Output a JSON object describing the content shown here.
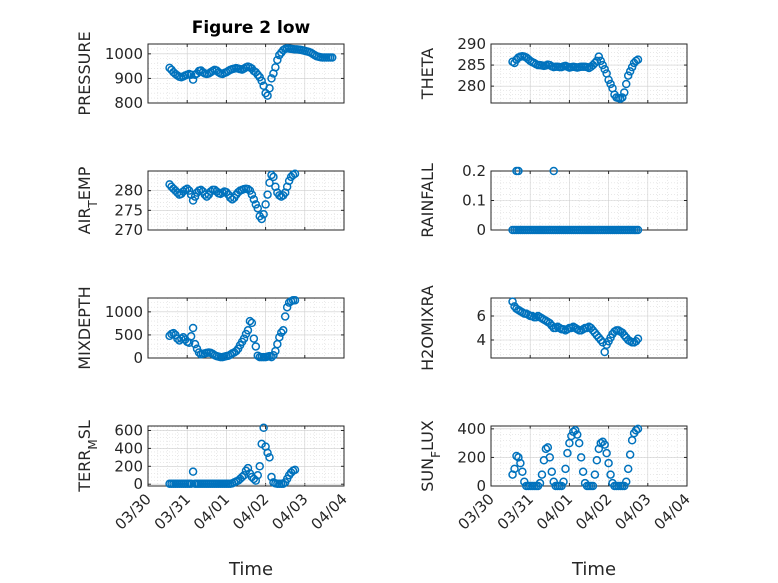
{
  "chart_data": [
    {
      "type": "scatter",
      "title": "Figure 2 low",
      "ylabel": "PRESSURE",
      "ylim": [
        800,
        1040
      ],
      "yticks": [
        800,
        900,
        1000
      ],
      "color": "#0072BD",
      "xlim": [
        "03/30",
        "04/04"
      ],
      "xtick_labels": [
        "03/30",
        "03/31",
        "04/01",
        "04/02",
        "04/03",
        "04/04"
      ],
      "grid": true,
      "x": [
        0.55,
        0.6,
        0.65,
        0.7,
        0.75,
        0.8,
        0.85,
        0.9,
        0.95,
        1.0,
        1.05,
        1.1,
        1.15,
        1.2,
        1.25,
        1.3,
        1.35,
        1.4,
        1.45,
        1.5,
        1.55,
        1.6,
        1.65,
        1.7,
        1.75,
        1.8,
        1.85,
        1.9,
        1.95,
        2.0,
        2.05,
        2.1,
        2.15,
        2.2,
        2.25,
        2.3,
        2.35,
        2.4,
        2.45,
        2.5,
        2.55,
        2.6,
        2.65,
        2.7,
        2.75,
        2.8,
        2.85,
        2.9,
        2.95,
        3.0,
        3.05,
        3.1,
        3.15,
        3.2,
        3.25,
        3.3,
        3.35,
        3.4,
        3.45,
        3.5,
        3.55,
        3.6,
        3.65,
        3.7,
        3.75,
        3.8,
        3.85,
        3.9,
        3.95,
        4.0,
        4.05,
        4.1,
        4.15,
        4.2,
        4.25,
        4.3,
        4.35,
        4.4,
        4.45,
        4.5,
        4.55,
        4.6,
        4.65,
        4.7
      ],
      "y": [
        943,
        935,
        925,
        918,
        912,
        907,
        905,
        908,
        912,
        915,
        918,
        915,
        895,
        915,
        920,
        930,
        932,
        925,
        920,
        918,
        920,
        925,
        930,
        935,
        932,
        925,
        920,
        918,
        922,
        925,
        930,
        935,
        938,
        940,
        942,
        940,
        938,
        936,
        940,
        945,
        948,
        945,
        940,
        930,
        925,
        915,
        905,
        890,
        870,
        840,
        830,
        860,
        900,
        920,
        945,
        975,
        995,
        1005,
        1015,
        1020,
        1022,
        1021,
        1020,
        1019,
        1018,
        1018,
        1017,
        1016,
        1014,
        1012,
        1010,
        1008,
        1005,
        1000,
        995,
        990,
        988,
        986,
        985,
        985,
        985,
        985,
        985,
        985
      ]
    },
    {
      "type": "scatter",
      "ylabel": "THETA",
      "ylim": [
        276,
        290
      ],
      "yticks": [
        280,
        285,
        290
      ],
      "color": "#0072BD",
      "xlim": [
        "03/30",
        "04/04"
      ],
      "xtick_labels": [
        "03/30",
        "03/31",
        "04/01",
        "04/02",
        "04/03",
        "04/04"
      ],
      "grid": true,
      "x": [
        0.55,
        0.6,
        0.65,
        0.7,
        0.75,
        0.8,
        0.85,
        0.9,
        0.95,
        1.0,
        1.05,
        1.1,
        1.15,
        1.2,
        1.25,
        1.3,
        1.35,
        1.4,
        1.45,
        1.5,
        1.55,
        1.6,
        1.65,
        1.7,
        1.75,
        1.8,
        1.85,
        1.9,
        1.95,
        2.0,
        2.05,
        2.1,
        2.15,
        2.2,
        2.25,
        2.3,
        2.35,
        2.4,
        2.45,
        2.5,
        2.55,
        2.6,
        2.65,
        2.7,
        2.75,
        2.8,
        2.85,
        2.9,
        2.95,
        3.0,
        3.05,
        3.1,
        3.15,
        3.2,
        3.25,
        3.3,
        3.35,
        3.4,
        3.45,
        3.5,
        3.55,
        3.6,
        3.65,
        3.7,
        3.75
      ],
      "y": [
        285.8,
        285.5,
        286.3,
        286.8,
        287.0,
        287.1,
        287.0,
        286.8,
        286.4,
        286.0,
        285.7,
        285.5,
        285.2,
        285.0,
        285.0,
        284.9,
        284.8,
        284.9,
        285.1,
        285.0,
        284.7,
        284.5,
        284.6,
        284.6,
        284.5,
        284.5,
        284.7,
        284.8,
        284.6,
        284.4,
        284.5,
        284.6,
        284.5,
        284.4,
        284.5,
        284.6,
        284.6,
        284.6,
        284.5,
        284.3,
        284.6,
        285.0,
        285.5,
        286.0,
        287.0,
        286.0,
        285.0,
        284.0,
        283.0,
        281.5,
        280.5,
        279.5,
        278.0,
        277.3,
        277.2,
        277.0,
        277.3,
        278.5,
        280.5,
        282.5,
        283.5,
        284.5,
        285.5,
        286.0,
        286.3
      ]
    },
    {
      "type": "scatter",
      "ylabel": "AIR_TEMP",
      "ylim": [
        270,
        285
      ],
      "yticks": [
        270,
        275,
        280
      ],
      "color": "#0072BD",
      "xlim": [
        "03/30",
        "04/04"
      ],
      "xtick_labels": [
        "03/30",
        "03/31",
        "04/01",
        "04/02",
        "04/03",
        "04/04"
      ],
      "grid": true,
      "x": [
        0.55,
        0.6,
        0.65,
        0.7,
        0.75,
        0.8,
        0.85,
        0.9,
        0.95,
        1.0,
        1.05,
        1.1,
        1.15,
        1.2,
        1.25,
        1.3,
        1.35,
        1.4,
        1.45,
        1.5,
        1.55,
        1.6,
        1.65,
        1.7,
        1.75,
        1.8,
        1.85,
        1.9,
        1.95,
        2.0,
        2.05,
        2.1,
        2.15,
        2.2,
        2.25,
        2.3,
        2.35,
        2.4,
        2.45,
        2.5,
        2.55,
        2.6,
        2.65,
        2.7,
        2.75,
        2.8,
        2.85,
        2.9,
        2.95,
        3.0,
        3.05,
        3.1,
        3.15,
        3.2,
        3.25,
        3.3,
        3.35,
        3.4,
        3.45,
        3.5,
        3.55,
        3.6,
        3.65,
        3.7,
        3.75
      ],
      "y": [
        281.6,
        281.0,
        280.5,
        280.0,
        279.5,
        279.0,
        279.2,
        279.8,
        280.2,
        280.5,
        280.0,
        279.0,
        277.5,
        278.5,
        279.5,
        280.0,
        280.2,
        279.8,
        279.0,
        278.5,
        279.0,
        279.8,
        280.2,
        280.2,
        279.8,
        279.3,
        279.2,
        279.5,
        279.8,
        279.6,
        279.0,
        278.2,
        277.8,
        278.2,
        279.0,
        279.6,
        280.0,
        280.2,
        280.4,
        280.5,
        280.4,
        280.0,
        279.0,
        277.8,
        276.5,
        275.5,
        273.5,
        272.8,
        274.0,
        276.5,
        279.0,
        282.0,
        284.0,
        283.5,
        281.0,
        279.5,
        278.8,
        278.5,
        278.8,
        279.5,
        281.0,
        282.5,
        283.5,
        284.0,
        284.3
      ]
    },
    {
      "type": "scatter",
      "ylabel": "RAINFALL",
      "ylim": [
        0,
        0.2
      ],
      "yticks": [
        0,
        0.1,
        0.2
      ],
      "color": "#0072BD",
      "xlim": [
        "03/30",
        "04/04"
      ],
      "xtick_labels": [
        "03/30",
        "03/31",
        "04/01",
        "04/02",
        "04/03",
        "04/04"
      ],
      "grid": true,
      "x": [
        0.55,
        0.6,
        0.65,
        0.7,
        0.75,
        0.8,
        0.85,
        0.9,
        0.95,
        1.0,
        1.05,
        1.1,
        1.15,
        1.2,
        1.25,
        1.3,
        1.35,
        1.4,
        1.45,
        1.5,
        1.55,
        1.6,
        1.65,
        1.7,
        1.75,
        1.8,
        1.85,
        1.9,
        1.95,
        2.0,
        2.05,
        2.1,
        2.15,
        2.2,
        2.25,
        2.3,
        2.35,
        2.4,
        2.45,
        2.5,
        2.55,
        2.6,
        2.65,
        2.7,
        2.75,
        2.8,
        2.85,
        2.9,
        2.95,
        3.0,
        3.05,
        3.1,
        3.15,
        3.2,
        3.25,
        3.3,
        3.35,
        3.4,
        3.45,
        3.5,
        3.55,
        3.6,
        3.65,
        3.7,
        3.75,
        0.65,
        0.7,
        1.6
      ],
      "y": [
        0,
        0,
        0,
        0,
        0,
        0,
        0,
        0,
        0,
        0,
        0,
        0,
        0,
        0,
        0,
        0,
        0,
        0,
        0,
        0,
        0,
        0,
        0,
        0,
        0,
        0,
        0,
        0,
        0,
        0,
        0,
        0,
        0,
        0,
        0,
        0,
        0,
        0,
        0,
        0,
        0,
        0,
        0,
        0,
        0,
        0,
        0,
        0,
        0,
        0,
        0,
        0,
        0,
        0,
        0,
        0,
        0,
        0,
        0,
        0,
        0,
        0,
        0,
        0,
        0,
        0.2,
        0.2,
        0.2
      ]
    },
    {
      "type": "scatter",
      "ylabel": "MIXDEPTH",
      "ylim": [
        0,
        1300
      ],
      "yticks": [
        0,
        500,
        1000
      ],
      "color": "#0072BD",
      "xlim": [
        "03/30",
        "04/04"
      ],
      "xtick_labels": [
        "03/30",
        "03/31",
        "04/01",
        "04/02",
        "04/03",
        "04/04"
      ],
      "grid": true,
      "x": [
        0.55,
        0.6,
        0.65,
        0.7,
        0.75,
        0.8,
        0.85,
        0.9,
        0.95,
        1.0,
        1.05,
        1.1,
        1.15,
        1.2,
        1.25,
        1.3,
        1.35,
        1.4,
        1.45,
        1.5,
        1.55,
        1.6,
        1.65,
        1.7,
        1.75,
        1.8,
        1.85,
        1.9,
        1.95,
        2.0,
        2.05,
        2.1,
        2.15,
        2.2,
        2.25,
        2.3,
        2.35,
        2.4,
        2.45,
        2.5,
        2.55,
        2.6,
        2.65,
        2.7,
        2.75,
        2.8,
        2.85,
        2.9,
        2.95,
        3.0,
        3.05,
        3.1,
        3.15,
        3.2,
        3.25,
        3.3,
        3.35,
        3.4,
        3.45,
        3.5,
        3.55,
        3.6,
        3.65,
        3.7,
        3.75
      ],
      "y": [
        480,
        520,
        540,
        500,
        420,
        380,
        420,
        450,
        400,
        350,
        330,
        470,
        650,
        300,
        200,
        120,
        80,
        90,
        100,
        110,
        120,
        110,
        90,
        60,
        40,
        30,
        20,
        20,
        30,
        40,
        50,
        70,
        100,
        120,
        150,
        200,
        280,
        350,
        420,
        520,
        600,
        800,
        760,
        420,
        250,
        50,
        20,
        20,
        20,
        20,
        30,
        40,
        20,
        60,
        150,
        300,
        450,
        550,
        600,
        900,
        1100,
        1200,
        1230,
        1250,
        1250
      ]
    },
    {
      "type": "scatter",
      "ylabel": "H2OMIXRA",
      "ylim": [
        2.5,
        7.5
      ],
      "yticks": [
        4,
        6
      ],
      "color": "#0072BD",
      "xlim": [
        "03/30",
        "04/04"
      ],
      "xtick_labels": [
        "03/30",
        "03/31",
        "04/01",
        "04/02",
        "04/03",
        "04/04"
      ],
      "grid": true,
      "x": [
        0.55,
        0.6,
        0.65,
        0.7,
        0.75,
        0.8,
        0.85,
        0.9,
        0.95,
        1.0,
        1.05,
        1.1,
        1.15,
        1.2,
        1.25,
        1.3,
        1.35,
        1.4,
        1.45,
        1.5,
        1.55,
        1.6,
        1.65,
        1.7,
        1.75,
        1.8,
        1.85,
        1.9,
        1.95,
        2.0,
        2.05,
        2.1,
        2.15,
        2.2,
        2.25,
        2.3,
        2.35,
        2.4,
        2.45,
        2.5,
        2.55,
        2.6,
        2.65,
        2.7,
        2.75,
        2.8,
        2.85,
        2.9,
        2.95,
        3.0,
        3.05,
        3.1,
        3.15,
        3.2,
        3.25,
        3.3,
        3.35,
        3.4,
        3.45,
        3.5,
        3.55,
        3.6,
        3.65,
        3.7,
        3.75
      ],
      "y": [
        7.2,
        6.8,
        6.6,
        6.5,
        6.4,
        6.3,
        6.2,
        6.2,
        6.1,
        6.0,
        6.0,
        5.9,
        5.9,
        6.0,
        5.9,
        5.8,
        5.7,
        5.6,
        5.5,
        5.4,
        5.2,
        5.0,
        5.0,
        5.1,
        5.0,
        4.9,
        4.9,
        4.8,
        4.9,
        5.0,
        5.0,
        5.1,
        5.0,
        4.9,
        4.8,
        4.8,
        4.9,
        5.0,
        5.0,
        5.1,
        5.0,
        4.8,
        4.6,
        4.4,
        4.2,
        4.0,
        3.8,
        3.0,
        3.6,
        3.9,
        4.2,
        4.5,
        4.7,
        4.8,
        4.8,
        4.7,
        4.6,
        4.4,
        4.2,
        4.0,
        3.9,
        3.8,
        3.8,
        3.9,
        4.1
      ]
    },
    {
      "type": "scatter",
      "ylabel": "TERR_MSL",
      "ylim": [
        -20,
        650
      ],
      "yticks": [
        0,
        200,
        400,
        600
      ],
      "color": "#0072BD",
      "xlim": [
        "03/30",
        "04/04"
      ],
      "xtick_labels": [
        "03/30",
        "03/31",
        "04/01",
        "04/02",
        "04/03",
        "04/04"
      ],
      "grid": true,
      "x": [
        0.55,
        0.6,
        0.65,
        0.7,
        0.75,
        0.8,
        0.85,
        0.9,
        0.95,
        1.0,
        1.05,
        1.1,
        1.15,
        1.2,
        1.25,
        1.3,
        1.35,
        1.4,
        1.45,
        1.5,
        1.55,
        1.6,
        1.65,
        1.7,
        1.75,
        1.8,
        1.85,
        1.9,
        1.95,
        2.0,
        2.05,
        2.1,
        2.15,
        2.2,
        2.25,
        2.3,
        2.35,
        2.4,
        2.45,
        2.5,
        2.55,
        2.6,
        2.65,
        2.7,
        2.75,
        2.8,
        2.85,
        2.9,
        2.95,
        3.0,
        3.05,
        3.1,
        3.15,
        3.2,
        3.25,
        3.3,
        3.35,
        3.4,
        3.45,
        3.5,
        3.55,
        3.6,
        3.65,
        3.7,
        3.75
      ],
      "y": [
        5,
        5,
        5,
        5,
        5,
        5,
        5,
        5,
        5,
        5,
        5,
        5,
        140,
        5,
        5,
        5,
        5,
        5,
        5,
        5,
        5,
        5,
        5,
        5,
        5,
        5,
        5,
        5,
        5,
        5,
        5,
        5,
        10,
        20,
        30,
        40,
        60,
        80,
        100,
        150,
        180,
        120,
        80,
        60,
        40,
        100,
        200,
        450,
        630,
        420,
        350,
        300,
        80,
        20,
        10,
        5,
        5,
        5,
        5,
        20,
        60,
        100,
        130,
        150,
        160
      ]
    },
    {
      "type": "scatter",
      "ylabel": "SUN_FLUX",
      "ylim": [
        0,
        420
      ],
      "yticks": [
        0,
        200,
        400
      ],
      "color": "#0072BD",
      "xlim": [
        "03/30",
        "04/04"
      ],
      "xtick_labels": [
        "03/30",
        "03/31",
        "04/01",
        "04/02",
        "04/03",
        "04/04"
      ],
      "grid": true,
      "x": [
        0.55,
        0.6,
        0.65,
        0.7,
        0.75,
        0.8,
        0.85,
        0.9,
        0.95,
        1.0,
        1.05,
        1.1,
        1.15,
        1.2,
        1.25,
        1.3,
        1.35,
        1.4,
        1.45,
        1.5,
        1.55,
        1.6,
        1.65,
        1.7,
        1.75,
        1.8,
        1.85,
        1.9,
        1.95,
        2.0,
        2.05,
        2.1,
        2.15,
        2.2,
        2.25,
        2.3,
        2.35,
        2.4,
        2.45,
        2.5,
        2.55,
        2.6,
        2.65,
        2.7,
        2.75,
        2.8,
        2.85,
        2.9,
        2.95,
        3.0,
        3.05,
        3.1,
        3.15,
        3.2,
        3.25,
        3.3,
        3.35,
        3.4,
        3.45,
        3.5,
        3.55,
        3.6,
        3.65,
        3.7,
        3.75
      ],
      "y": [
        80,
        120,
        210,
        200,
        160,
        100,
        30,
        0,
        0,
        0,
        0,
        0,
        0,
        0,
        20,
        80,
        180,
        260,
        270,
        200,
        100,
        30,
        0,
        0,
        0,
        0,
        30,
        120,
        230,
        300,
        350,
        380,
        390,
        360,
        300,
        200,
        100,
        20,
        0,
        0,
        0,
        0,
        80,
        180,
        260,
        300,
        310,
        290,
        230,
        160,
        80,
        20,
        0,
        0,
        0,
        0,
        0,
        0,
        30,
        120,
        220,
        320,
        370,
        390,
        400
      ]
    }
  ],
  "xlabel": "Time"
}
